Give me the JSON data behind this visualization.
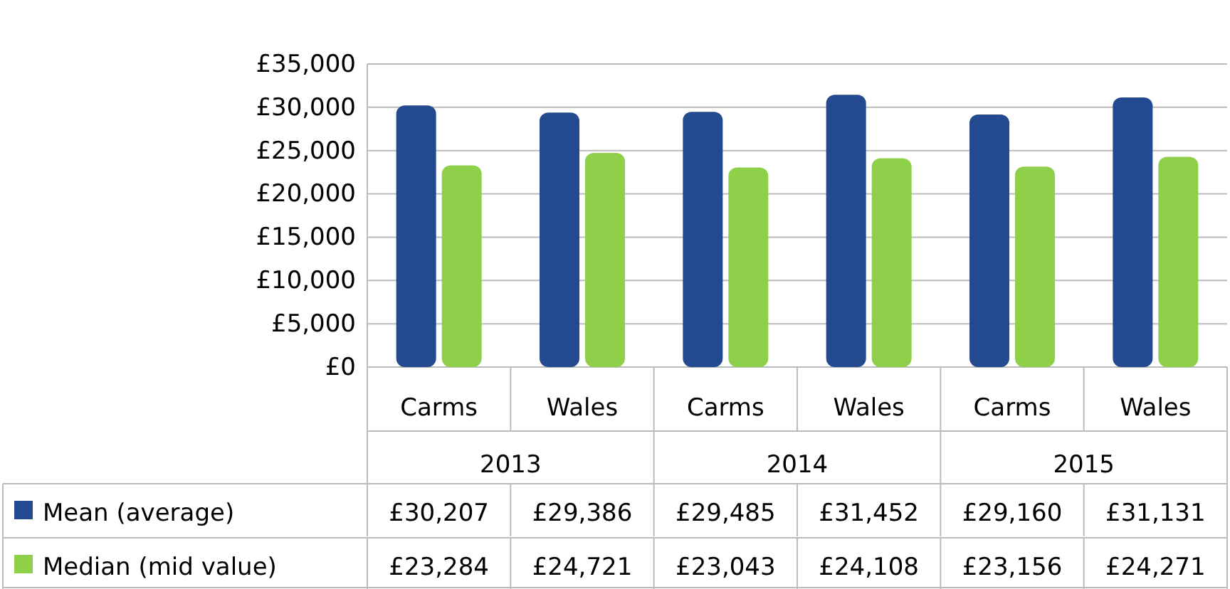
{
  "chart_data": {
    "type": "bar",
    "categories": [
      "Carms",
      "Wales",
      "Carms",
      "Wales",
      "Carms",
      "Wales"
    ],
    "annotations": [
      "2013",
      "2014",
      "2015"
    ],
    "series": [
      {
        "name": "Mean (average)",
        "color": "#234a8f",
        "values": [
          30207,
          29386,
          29485,
          31452,
          29160,
          31131
        ],
        "value_labels": [
          "£30,207",
          "£29,386",
          "£29,485",
          "£31,452",
          "£29,160",
          "£31,131"
        ]
      },
      {
        "name": "Median (mid value)",
        "color": "#8ed04a",
        "values": [
          23284,
          24721,
          23043,
          24108,
          23156,
          24271
        ],
        "value_labels": [
          "£23,284",
          "£24,721",
          "£23,043",
          "£24,108",
          "£23,156",
          "£24,271"
        ]
      }
    ],
    "ylim": [
      0,
      35000
    ],
    "yticks": [
      {
        "value": 0,
        "label": "£0"
      },
      {
        "value": 5000,
        "label": "£5,000"
      },
      {
        "value": 10000,
        "label": "£10,000"
      },
      {
        "value": 15000,
        "label": "£15,000"
      },
      {
        "value": 20000,
        "label": "£20,000"
      },
      {
        "value": 25000,
        "label": "£25,000"
      },
      {
        "value": 30000,
        "label": "£30,000"
      },
      {
        "value": 35000,
        "label": "£35,000"
      }
    ],
    "grid": "y",
    "legend": "bottom"
  }
}
